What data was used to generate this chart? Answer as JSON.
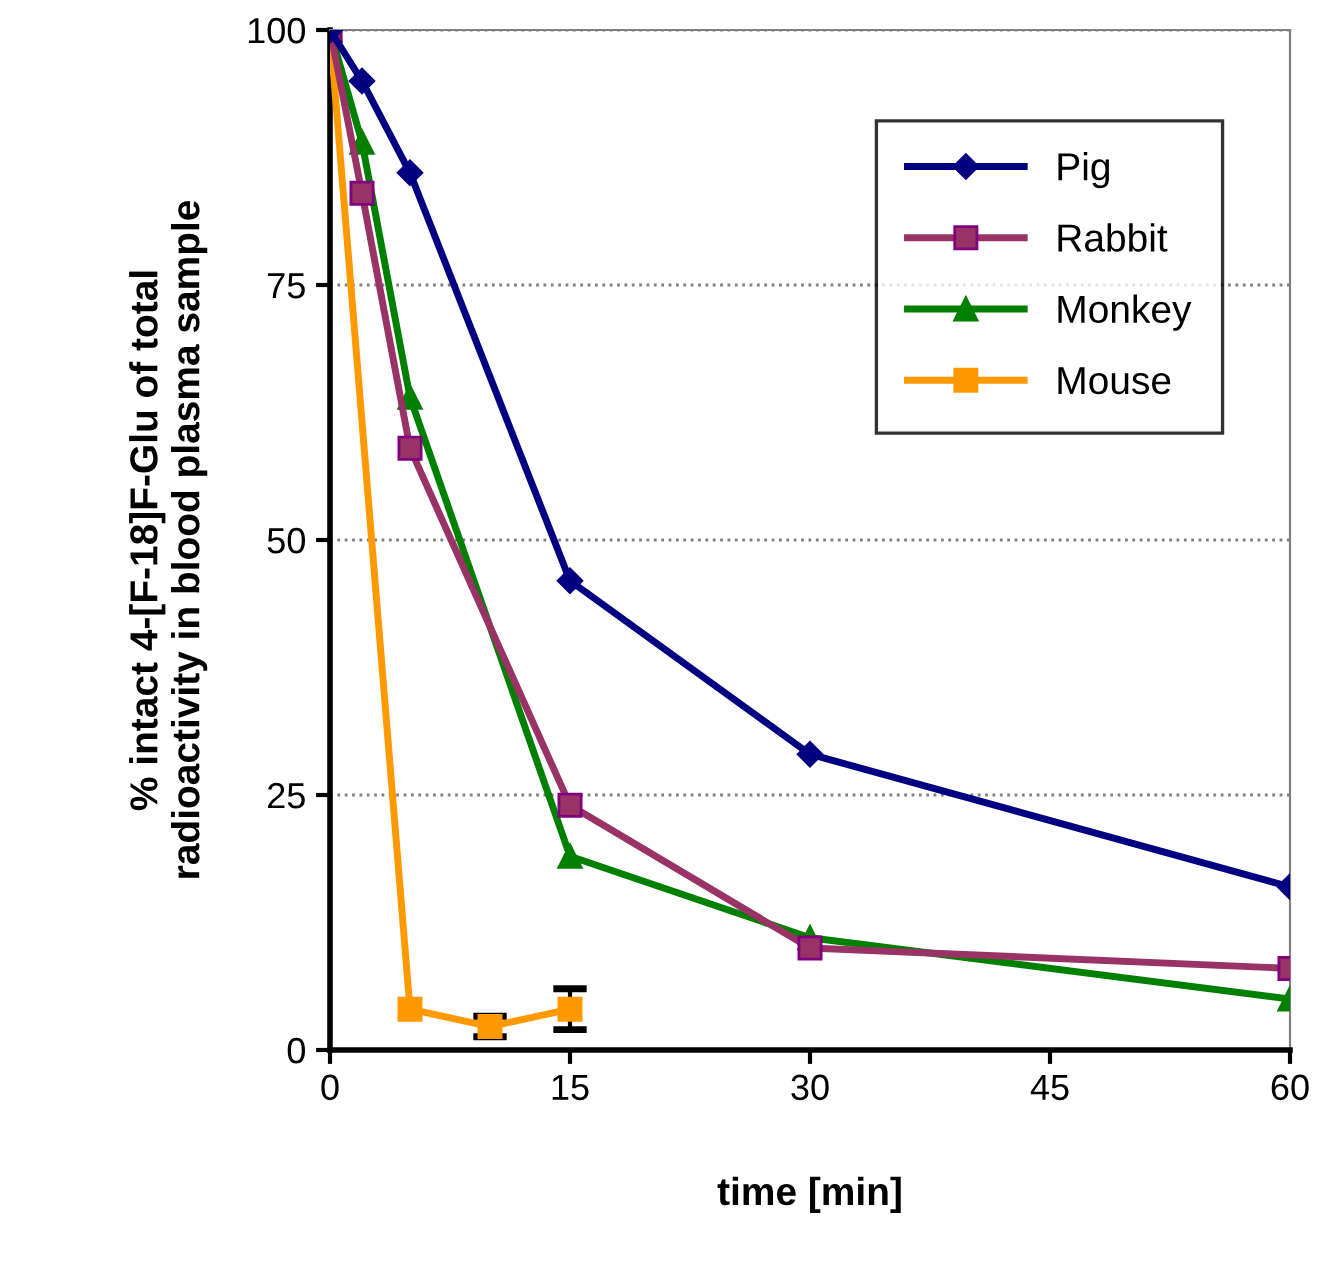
{
  "chart_data": {
    "type": "line",
    "xlabel": "time [min]",
    "ylabel": "% intact 4-[F-18]F-Glu of total\nradioactivity in blood plasma sample",
    "xlim": [
      0,
      60
    ],
    "xticks": [
      0,
      15,
      30,
      45,
      60
    ],
    "ylim": [
      0,
      100
    ],
    "yticks": [
      0,
      25,
      50,
      75,
      100
    ],
    "grid": "y",
    "legend": "top right",
    "line_style": "solid",
    "series": [
      {
        "name": "Pig",
        "color": "#000080",
        "marker": "diamond",
        "x": [
          0,
          2,
          5,
          15,
          30,
          60
        ],
        "values": [
          100,
          95,
          86,
          46,
          29,
          16
        ]
      },
      {
        "name": "Rabbit",
        "color": "#993366",
        "marker": "square",
        "x": [
          0,
          2,
          5,
          15,
          30,
          60
        ],
        "values": [
          100,
          84,
          59,
          24,
          10,
          8
        ]
      },
      {
        "name": "Monkey",
        "color": "#008000",
        "marker": "triangle",
        "x": [
          0,
          2,
          5,
          15,
          30,
          60
        ],
        "values": [
          100,
          89,
          64,
          19,
          11,
          5
        ]
      },
      {
        "name": "Mouse",
        "color": "#ff9900",
        "marker": "square",
        "x": [
          0,
          5,
          10,
          15
        ],
        "values": [
          100,
          4,
          2.3,
          4
        ],
        "errors": [
          null,
          null,
          1,
          2
        ]
      }
    ]
  }
}
